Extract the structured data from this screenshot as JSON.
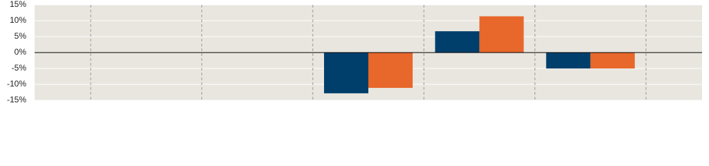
{
  "chart_data": {
    "type": "bar",
    "categories": [
      null,
      null,
      null,
      null,
      null,
      null,
      null
    ],
    "series": [
      {
        "color": "#003f6b",
        "values": [
          null,
          null,
          null,
          -12.8,
          6.7,
          -5.0,
          null
        ]
      },
      {
        "color": "#e8672a",
        "values": [
          null,
          null,
          null,
          -11.1,
          11.4,
          -5.0,
          null
        ]
      }
    ],
    "ylim": [
      -15,
      15
    ],
    "yticks": [
      {
        "value": -15,
        "label": "-15%"
      },
      {
        "value": -10,
        "label": "-10%"
      },
      {
        "value": -5,
        "label": "-5%"
      },
      {
        "value": 0,
        "label": "0%"
      },
      {
        "value": 5,
        "label": "5%"
      },
      {
        "value": 10,
        "label": "10%"
      },
      {
        "value": 15,
        "label": "15%"
      }
    ],
    "grid": true
  }
}
